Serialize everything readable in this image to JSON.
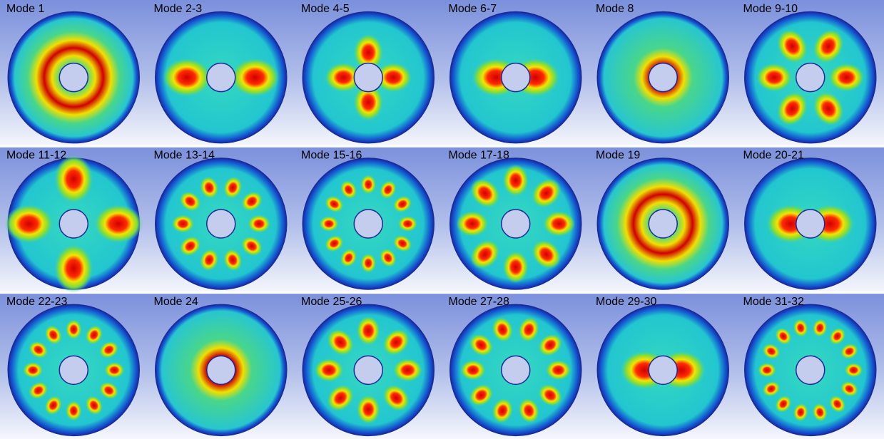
{
  "panels": [
    {
      "label": "Mode 1"
    },
    {
      "label": "Mode 2-3"
    },
    {
      "label": "Mode 4-5"
    },
    {
      "label": "Mode 6-7"
    },
    {
      "label": "Mode 8"
    },
    {
      "label": "Mode 9-10"
    },
    {
      "label": "Mode 11-12"
    },
    {
      "label": "Mode 13-14"
    },
    {
      "label": "Mode 15-16"
    },
    {
      "label": "Mode 17-18"
    },
    {
      "label": "Mode 19"
    },
    {
      "label": "Mode 20-21"
    },
    {
      "label": "Mode 22-23"
    },
    {
      "label": "Mode 24"
    },
    {
      "label": "Mode 25-26"
    },
    {
      "label": "Mode 27-28"
    },
    {
      "label": "Mode 29-30"
    },
    {
      "label": "Mode 31-32"
    }
  ]
}
